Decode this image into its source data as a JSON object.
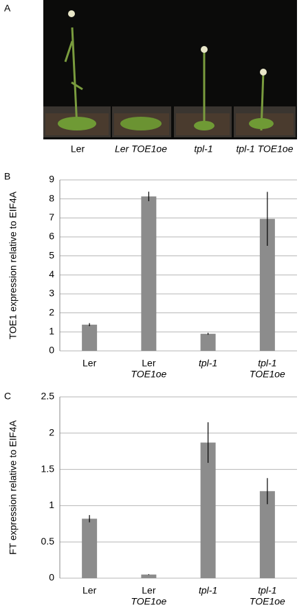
{
  "photo": {
    "panel_label": "A",
    "labels": [
      "Ler",
      "Ler TOE1oe",
      "tpl-1",
      "tpl-1 TOE1oe"
    ]
  },
  "chart_data": [
    {
      "type": "bar",
      "panel_label": "B",
      "y_label": "TOE1 expression relative to EIF4A",
      "categories": [
        [
          "Ler"
        ],
        [
          "Ler",
          "TOE1oe"
        ],
        [
          "tpl-1"
        ],
        [
          "tpl-1",
          "TOE1oe"
        ]
      ],
      "values": [
        1.38,
        8.13,
        0.9,
        6.95
      ],
      "errors": [
        0.08,
        0.25,
        0.05,
        1.42
      ],
      "color": "#8c8c8c",
      "ylim": [
        0,
        9
      ],
      "yticks": [
        0,
        1,
        2,
        3,
        4,
        5,
        6,
        7,
        8,
        9
      ],
      "grid": true
    },
    {
      "type": "bar",
      "panel_label": "C",
      "y_label": "FT expression relative to EIF4A",
      "categories": [
        [
          "Ler"
        ],
        [
          "Ler",
          "TOE1oe"
        ],
        [
          "tpl-1"
        ],
        [
          "tpl-1",
          "TOE1oe"
        ]
      ],
      "values": [
        0.82,
        0.05,
        1.87,
        1.2
      ],
      "errors": [
        0.05,
        0.005,
        0.28,
        0.18
      ],
      "color": "#8c8c8c",
      "ylim": [
        0,
        2.5
      ],
      "yticks": [
        0,
        0.5,
        1,
        1.5,
        2,
        2.5
      ],
      "grid": true
    }
  ]
}
